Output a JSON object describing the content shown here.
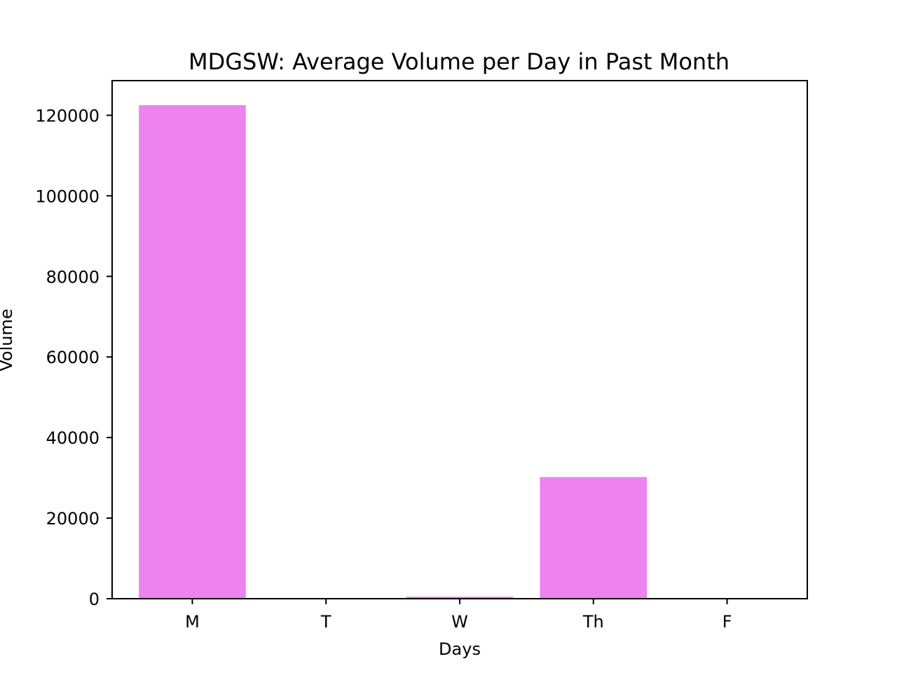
{
  "chart_data": {
    "type": "bar",
    "title": "MDGSW: Average Volume per Day in Past Month",
    "xlabel": "Days",
    "ylabel": "Volume",
    "categories": [
      "M",
      "T",
      "W",
      "Th",
      "F"
    ],
    "values": [
      122500,
      0,
      500,
      30200,
      0
    ],
    "ylim": [
      0,
      128600
    ],
    "yticks": [
      0,
      20000,
      40000,
      60000,
      80000,
      100000,
      120000
    ],
    "bar_color": "#ee82ee",
    "grid": false,
    "legend": null
  }
}
